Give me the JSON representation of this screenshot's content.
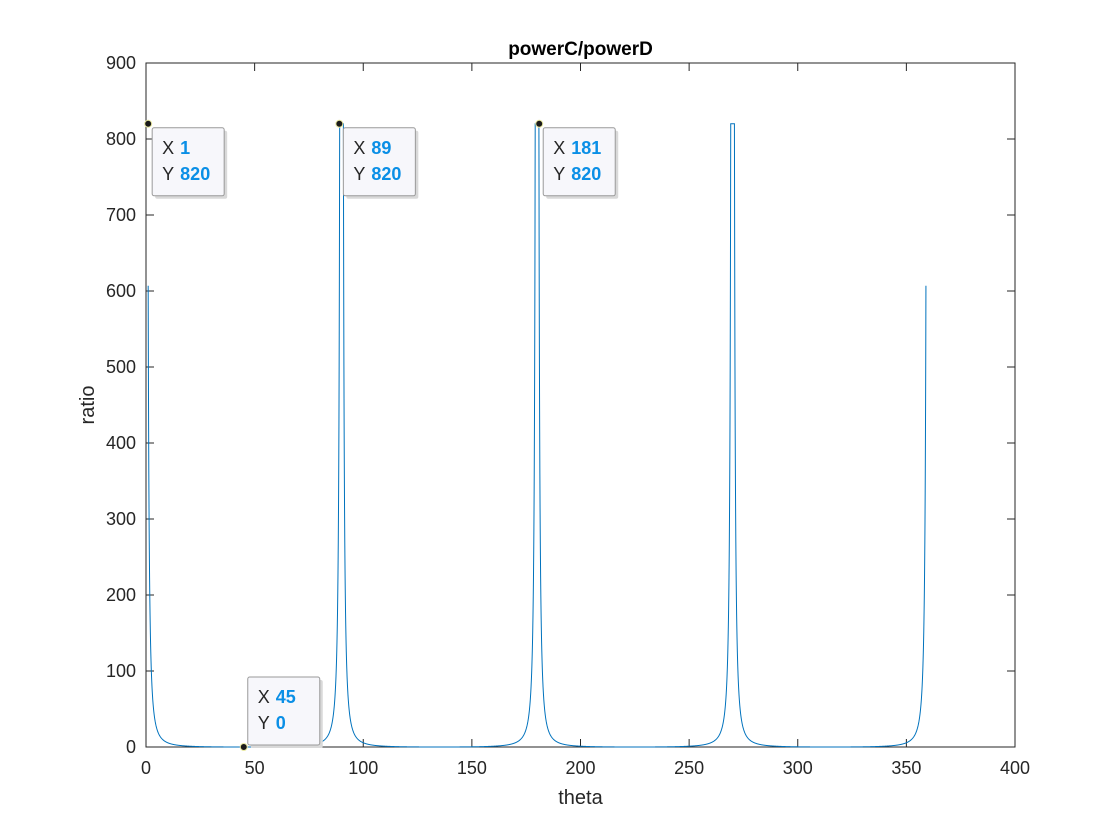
{
  "chart_data": {
    "type": "line",
    "title": "powerC/powerD",
    "xlabel": "theta",
    "ylabel": "ratio",
    "xlim": [
      0,
      400
    ],
    "ylim": [
      0,
      900
    ],
    "xticks": [
      "0",
      "50",
      "100",
      "150",
      "200",
      "250",
      "300",
      "350",
      "400"
    ],
    "yticks": [
      "0",
      "100",
      "200",
      "300",
      "400",
      "500",
      "600",
      "700",
      "800",
      "900"
    ],
    "grid": false,
    "legend": "none",
    "series": [
      {
        "color": "#0072bd",
        "x_range": [
          1,
          359
        ],
        "peaks_at": [
          1,
          89,
          91,
          179,
          181,
          269,
          271,
          359
        ],
        "peak_value": 820,
        "minima_at": [
          45,
          135,
          225,
          315
        ],
        "minimum_value": 0
      }
    ],
    "datatips": [
      {
        "x_label": "X",
        "x": "1",
        "y_label": "Y",
        "y": "820"
      },
      {
        "x_label": "X",
        "x": "89",
        "y_label": "Y",
        "y": "820"
      },
      {
        "x_label": "X",
        "x": "181",
        "y_label": "Y",
        "y": "820"
      },
      {
        "x_label": "X",
        "x": "45",
        "y_label": "Y",
        "y": "0"
      }
    ]
  },
  "colors": {
    "series": "#0072bd",
    "datatip_value": "#0a8fe6",
    "axes": "#262626"
  }
}
